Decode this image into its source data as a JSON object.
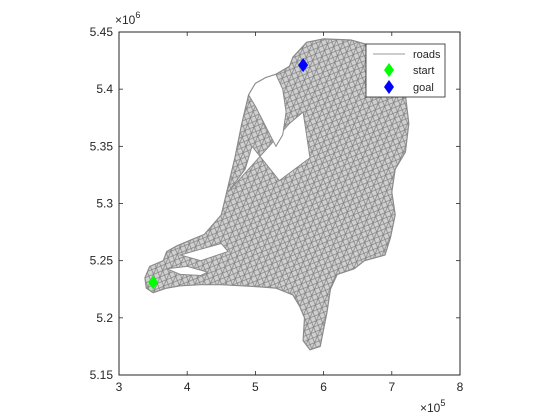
{
  "chart_data": {
    "type": "scatter",
    "title": "",
    "xlabel": "",
    "ylabel": "",
    "xlim": [
      3,
      8
    ],
    "ylim": [
      5.15,
      5.45
    ],
    "x_exponent": "×10",
    "x_exponent_power": "5",
    "y_exponent": "×10",
    "y_exponent_power": "6",
    "x_ticks": [
      {
        "value": 3,
        "label": "3"
      },
      {
        "value": 4,
        "label": "4"
      },
      {
        "value": 5,
        "label": "5"
      },
      {
        "value": 6,
        "label": "6"
      },
      {
        "value": 7,
        "label": "7"
      },
      {
        "value": 8,
        "label": "8"
      }
    ],
    "y_ticks": [
      {
        "value": 5.15,
        "label": "5.15"
      },
      {
        "value": 5.2,
        "label": "5.2"
      },
      {
        "value": 5.25,
        "label": "5.25"
      },
      {
        "value": 5.3,
        "label": "5.3"
      },
      {
        "value": 5.35,
        "label": "5.35"
      },
      {
        "value": 5.4,
        "label": "5.4"
      },
      {
        "value": 5.45,
        "label": "5.45"
      }
    ],
    "grid": false,
    "legend_position": "top-right",
    "series": [
      {
        "name": "roads",
        "style": "line",
        "color": "#999999"
      },
      {
        "name": "start",
        "style": "diamond",
        "color": "#00ff00",
        "points": [
          {
            "x": 3.5,
            "y": 5.231
          }
        ]
      },
      {
        "name": "goal",
        "style": "diamond",
        "color": "#0000ff",
        "points": [
          {
            "x": 5.7,
            "y": 5.421
          }
        ]
      }
    ],
    "roads_outline": [
      [
        5.55,
        5.428
      ],
      [
        5.75,
        5.441
      ],
      [
        6.0,
        5.444
      ],
      [
        6.4,
        5.443
      ],
      [
        6.7,
        5.438
      ],
      [
        7.0,
        5.428
      ],
      [
        7.15,
        5.415
      ],
      [
        7.2,
        5.395
      ],
      [
        7.25,
        5.37
      ],
      [
        7.2,
        5.345
      ],
      [
        7.05,
        5.33
      ],
      [
        7.0,
        5.31
      ],
      [
        7.05,
        5.29
      ],
      [
        6.98,
        5.27
      ],
      [
        6.9,
        5.255
      ],
      [
        6.6,
        5.25
      ],
      [
        6.45,
        5.243
      ],
      [
        6.2,
        5.238
      ],
      [
        6.1,
        5.225
      ],
      [
        6.05,
        5.205
      ],
      [
        6.0,
        5.19
      ],
      [
        5.95,
        5.175
      ],
      [
        5.8,
        5.172
      ],
      [
        5.7,
        5.18
      ],
      [
        5.72,
        5.2
      ],
      [
        5.65,
        5.21
      ],
      [
        5.55,
        5.22
      ],
      [
        5.3,
        5.226
      ],
      [
        5.1,
        5.227
      ],
      [
        4.8,
        5.228
      ],
      [
        4.5,
        5.229
      ],
      [
        4.2,
        5.229
      ],
      [
        3.9,
        5.228
      ],
      [
        3.7,
        5.226
      ],
      [
        3.5,
        5.222
      ],
      [
        3.4,
        5.226
      ],
      [
        3.38,
        5.235
      ],
      [
        3.45,
        5.245
      ],
      [
        3.65,
        5.25
      ],
      [
        3.7,
        5.258
      ],
      [
        3.85,
        5.263
      ],
      [
        4.05,
        5.268
      ],
      [
        4.25,
        5.273
      ],
      [
        4.5,
        5.29
      ],
      [
        4.6,
        5.315
      ],
      [
        4.7,
        5.34
      ],
      [
        4.8,
        5.37
      ],
      [
        4.9,
        5.395
      ],
      [
        5.0,
        5.405
      ],
      [
        5.15,
        5.41
      ],
      [
        5.3,
        5.413
      ],
      [
        5.5,
        5.42
      ]
    ],
    "roads_waters": [
      [
        [
          4.6,
          5.31
        ],
        [
          5.5,
          5.37
        ],
        [
          5.7,
          5.38
        ],
        [
          5.8,
          5.34
        ],
        [
          5.35,
          5.32
        ],
        [
          4.95,
          5.35
        ],
        [
          4.85,
          5.33
        ]
      ],
      [
        [
          5.3,
          5.35
        ],
        [
          5.0,
          5.385
        ],
        [
          4.9,
          5.395
        ],
        [
          5.0,
          5.405
        ],
        [
          5.15,
          5.41
        ],
        [
          5.3,
          5.413
        ],
        [
          5.4,
          5.4
        ],
        [
          5.45,
          5.38
        ],
        [
          5.4,
          5.36
        ]
      ],
      [
        [
          3.9,
          5.255
        ],
        [
          4.2,
          5.26
        ],
        [
          4.5,
          5.265
        ],
        [
          4.6,
          5.258
        ],
        [
          4.2,
          5.25
        ]
      ],
      [
        [
          3.7,
          5.243
        ],
        [
          4.0,
          5.245
        ],
        [
          4.3,
          5.24
        ],
        [
          4.2,
          5.237
        ],
        [
          3.9,
          5.238
        ]
      ]
    ]
  },
  "legend": {
    "items": [
      {
        "label": "roads",
        "color": "#999999"
      },
      {
        "label": "start",
        "color": "#00ff00"
      },
      {
        "label": "goal",
        "color": "#0000ff"
      }
    ]
  }
}
